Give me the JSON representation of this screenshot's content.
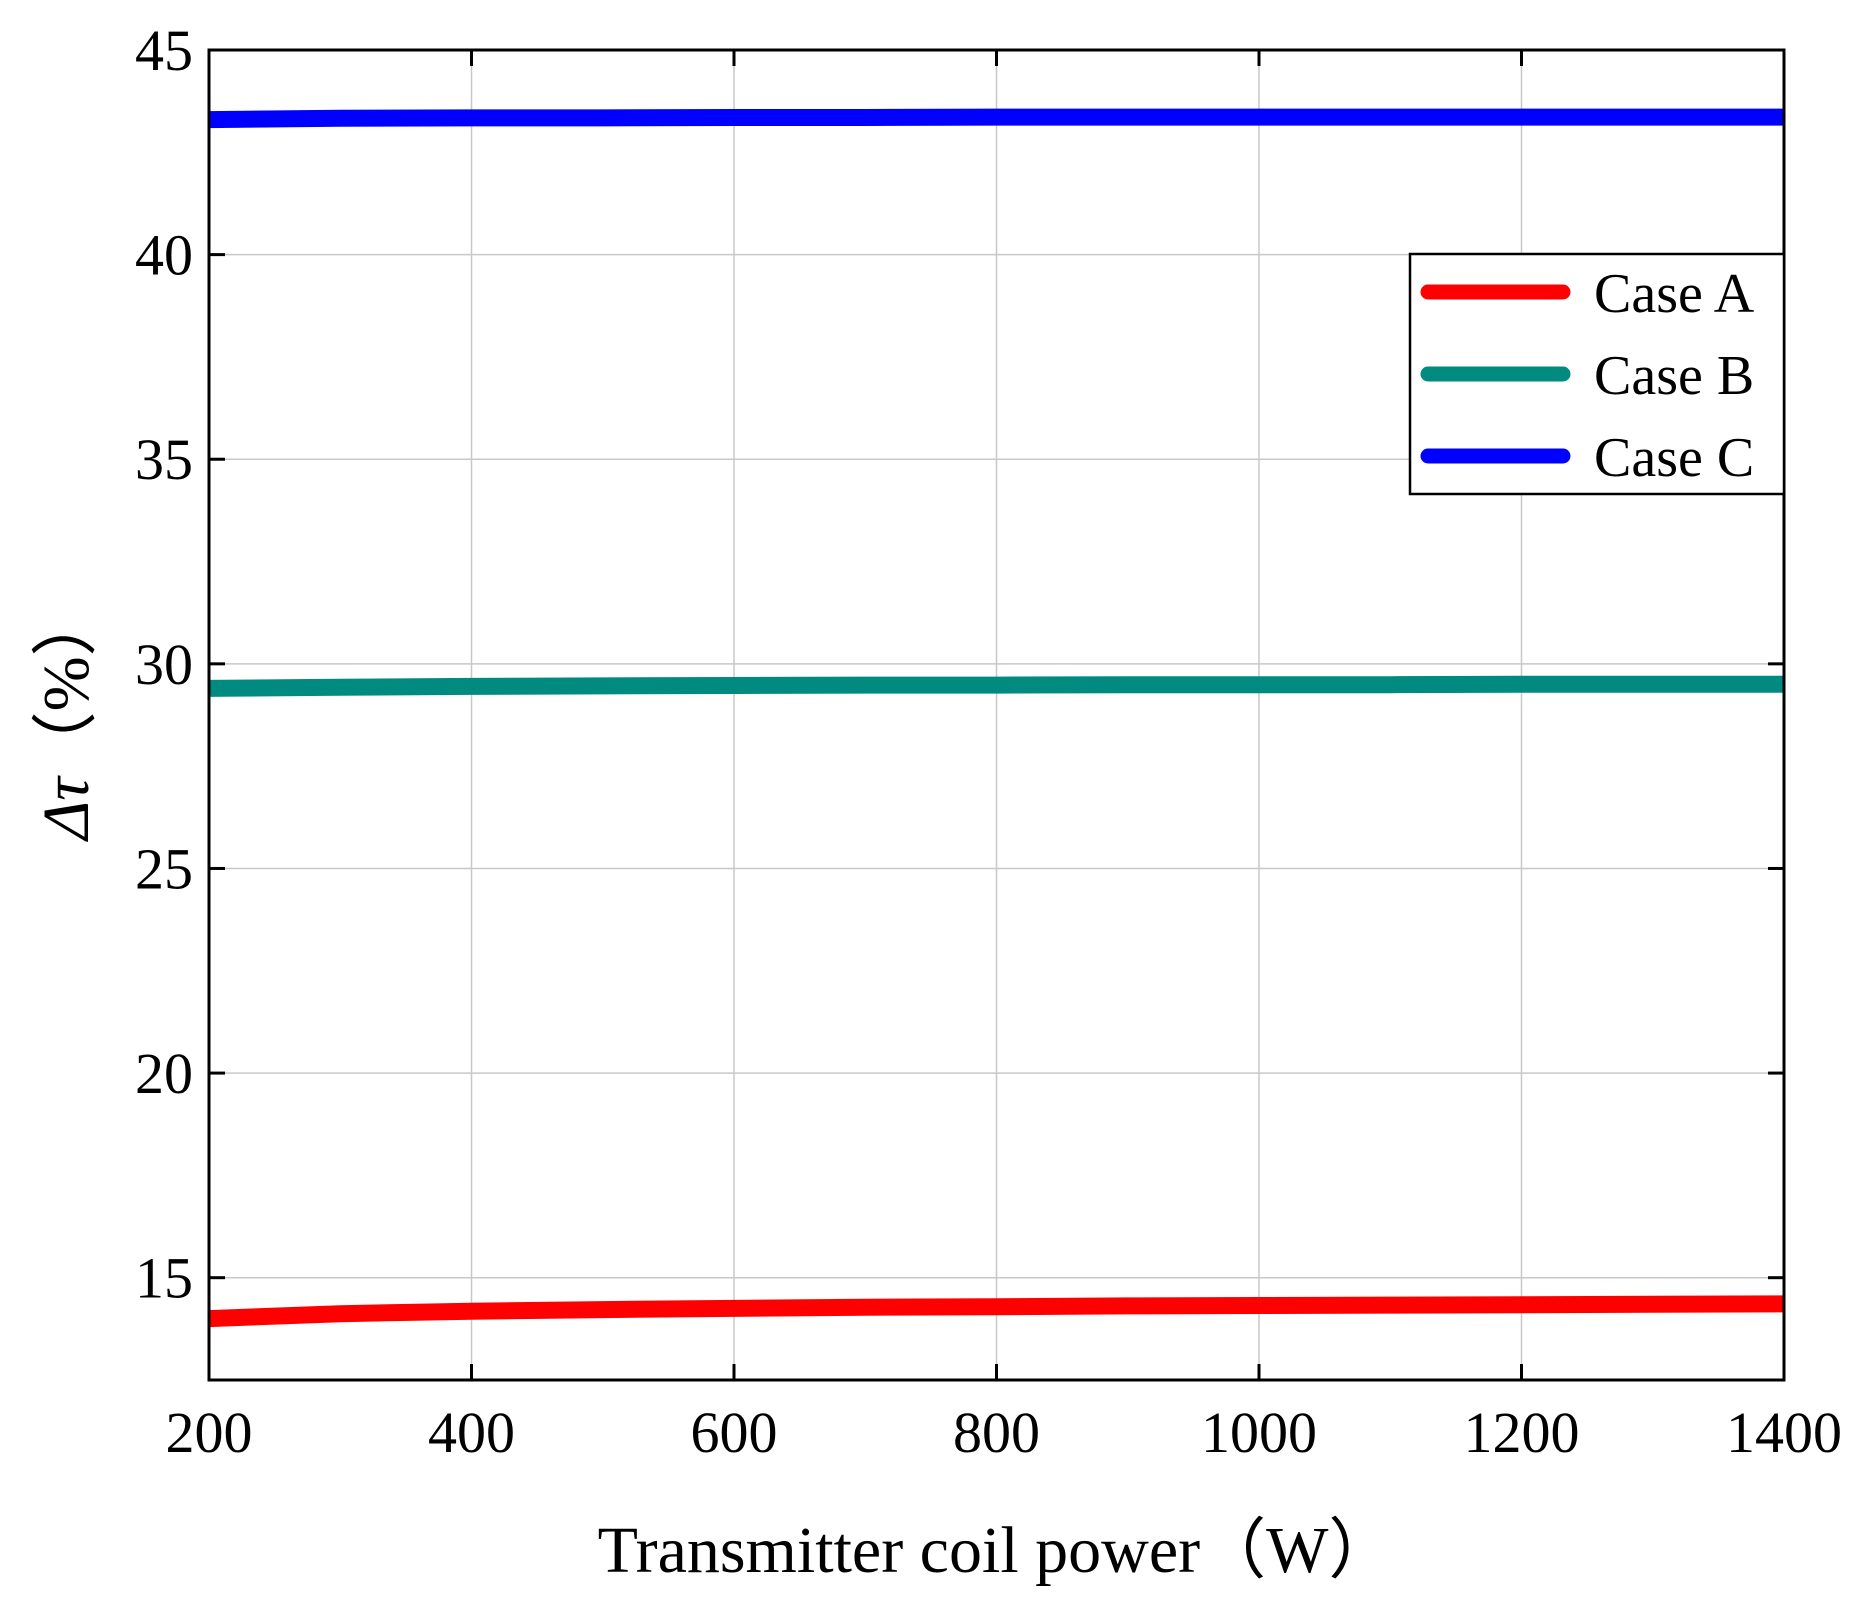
{
  "chart_data": {
    "type": "line",
    "title": "",
    "xlabel": "Transmitter coil power（W）",
    "ylabel_symbol": "Δτ",
    "ylabel_unit": "（%）",
    "xlim": [
      200,
      1400
    ],
    "ylim": [
      12.5,
      45
    ],
    "xticks": [
      200,
      400,
      600,
      800,
      1000,
      1200,
      1400
    ],
    "yticks": [
      15,
      20,
      25,
      30,
      35,
      40,
      45
    ],
    "grid": true,
    "legend_position": "top-right",
    "series": [
      {
        "name": "Case A",
        "color": "#ff0000",
        "x": [
          200,
          300,
          400,
          500,
          600,
          700,
          800,
          900,
          1000,
          1100,
          1200,
          1300,
          1400
        ],
        "y": [
          14.0,
          14.12,
          14.18,
          14.22,
          14.25,
          14.28,
          14.29,
          14.31,
          14.32,
          14.33,
          14.34,
          14.35,
          14.36
        ]
      },
      {
        "name": "Case B",
        "color": "#008a80",
        "x": [
          200,
          300,
          400,
          500,
          600,
          700,
          800,
          900,
          1000,
          1100,
          1200,
          1300,
          1400
        ],
        "y": [
          29.4,
          29.43,
          29.45,
          29.46,
          29.47,
          29.48,
          29.48,
          29.49,
          29.49,
          29.49,
          29.5,
          29.5,
          29.5
        ]
      },
      {
        "name": "Case C",
        "color": "#0000ff",
        "x": [
          200,
          300,
          400,
          500,
          600,
          700,
          800,
          900,
          1000,
          1100,
          1200,
          1300,
          1400
        ],
        "y": [
          43.3,
          43.33,
          43.34,
          43.34,
          43.35,
          43.35,
          43.36,
          43.36,
          43.36,
          43.36,
          43.36,
          43.36,
          43.36
        ]
      }
    ]
  }
}
